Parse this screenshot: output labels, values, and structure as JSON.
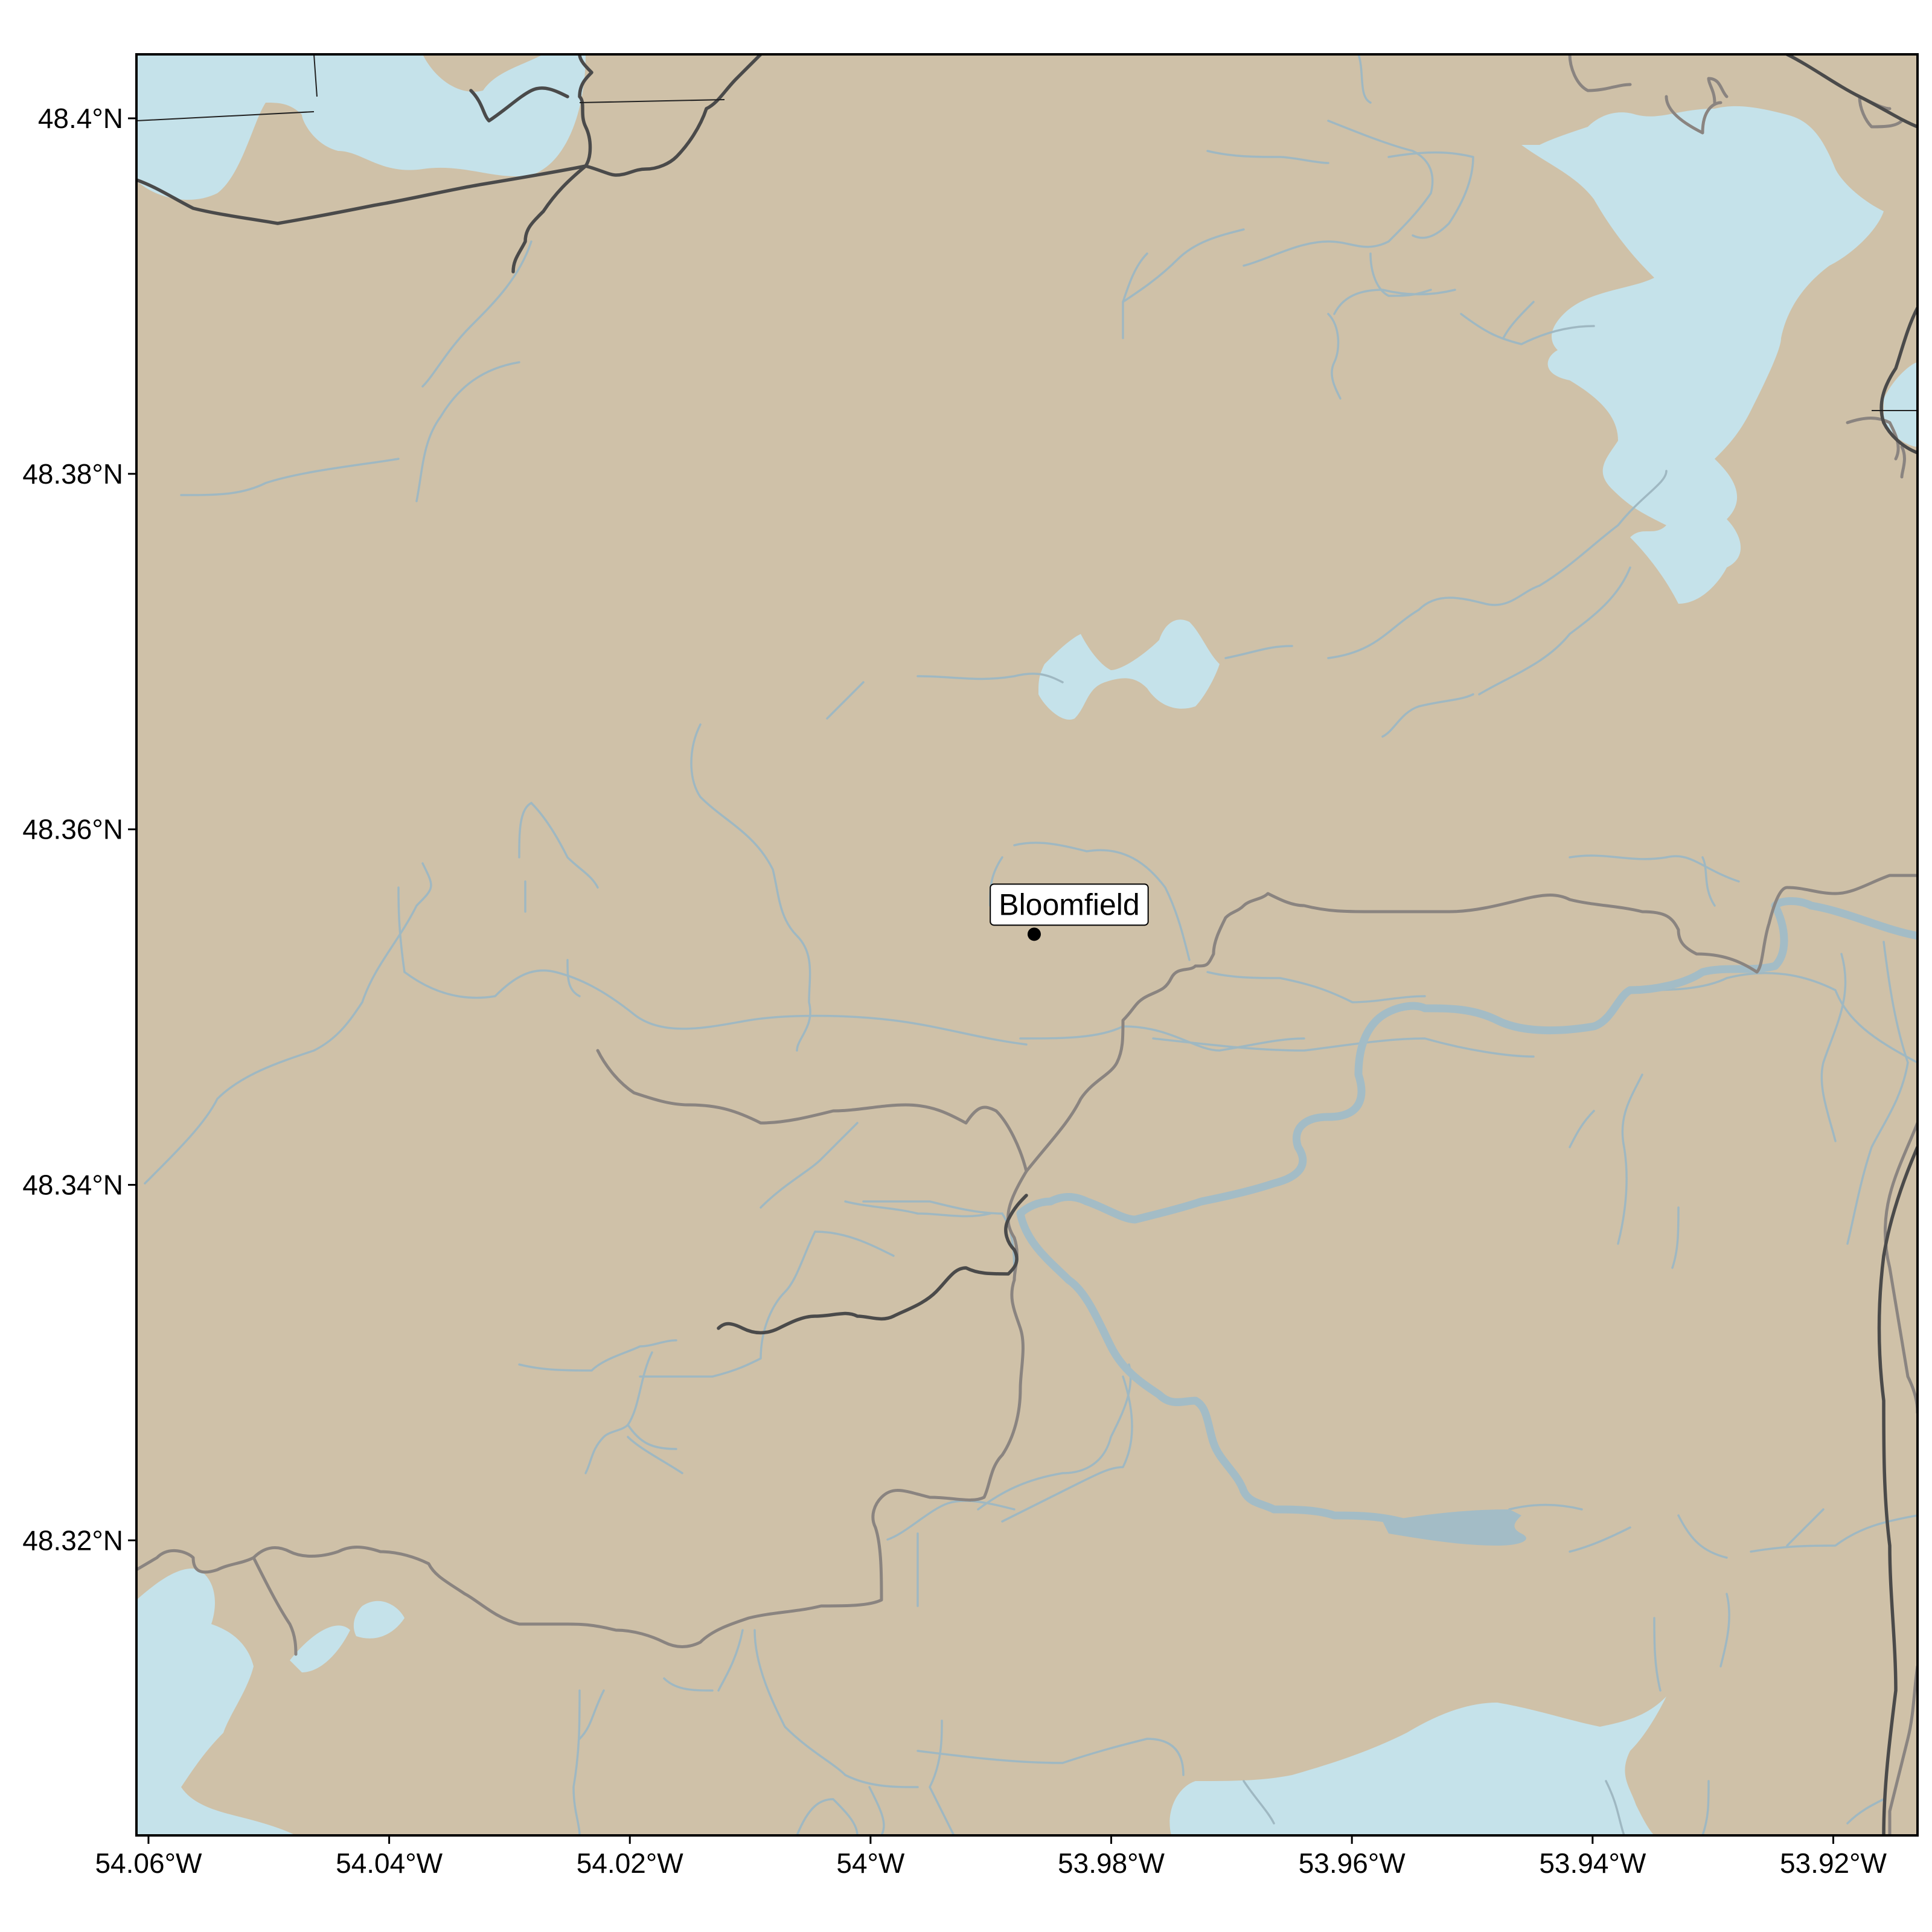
{
  "map": {
    "colors": {
      "land": "#cfc1a8",
      "water": "#c5e2ea",
      "stream": "#9fb8c2",
      "road": "#8a8480",
      "highway": "#4a4a4a",
      "frame": "#000000"
    },
    "extent": {
      "lon_min": -54.061,
      "lon_max": -53.913,
      "lat_min": 48.3034,
      "lat_max": 48.4036
    },
    "x_ticks": [
      {
        "lon": -54.06,
        "label": "54.06°W"
      },
      {
        "lon": -54.04,
        "label": "54.04°W"
      },
      {
        "lon": -54.02,
        "label": "54.02°W"
      },
      {
        "lon": -54.0,
        "label": "54°W"
      },
      {
        "lon": -53.98,
        "label": "53.98°W"
      },
      {
        "lon": -53.96,
        "label": "53.96°W"
      },
      {
        "lon": -53.94,
        "label": "53.94°W"
      },
      {
        "lon": -53.92,
        "label": "53.92°W"
      }
    ],
    "y_ticks": [
      {
        "lat": 48.4,
        "label": "48.4°N"
      },
      {
        "lat": 48.38,
        "label": "48.38°N"
      },
      {
        "lat": 48.36,
        "label": "48.36°N"
      },
      {
        "lat": 48.34,
        "label": "48.34°N"
      },
      {
        "lat": 48.32,
        "label": "48.32°N"
      }
    ],
    "places": [
      {
        "name": "Bloomfield",
        "lon": -53.9864,
        "lat": 48.3541
      }
    ]
  }
}
